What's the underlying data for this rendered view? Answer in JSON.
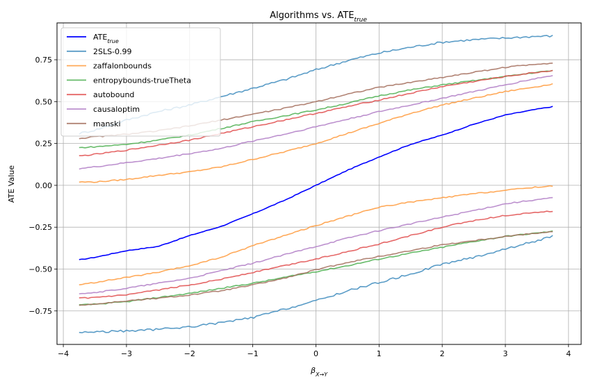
{
  "chart_data": {
    "type": "line",
    "title_main": "Algorithms vs. ATE",
    "title_sub": "true",
    "xlabel_main": "β",
    "xlabel_sub": "X→Y",
    "ylabel": "ATE Value",
    "xlim": [
      -4.1,
      4.2
    ],
    "ylim": [
      -0.95,
      0.97
    ],
    "xticks": [
      -4,
      -3,
      -2,
      -1,
      0,
      1,
      2,
      3,
      4
    ],
    "xtick_labels": [
      "−4",
      "−3",
      "−2",
      "−1",
      "0",
      "1",
      "2",
      "3",
      "4"
    ],
    "yticks": [
      -0.75,
      -0.5,
      -0.25,
      0.0,
      0.25,
      0.5,
      0.75
    ],
    "ytick_labels": [
      "−0.75",
      "−0.50",
      "−0.25",
      "0.00",
      "0.25",
      "0.50",
      "0.75"
    ],
    "grid": true,
    "legend_position": "upper-left",
    "x": [
      -3.75,
      -3.5,
      -3.0,
      -2.5,
      -2.0,
      -1.5,
      -1.0,
      -0.5,
      0.0,
      0.5,
      1.0,
      1.5,
      2.0,
      2.5,
      3.0,
      3.5,
      3.75
    ],
    "series": [
      {
        "name": "ATE",
        "name_sub": "true",
        "color": "#0000ff",
        "upper": [
          -0.445,
          -0.43,
          -0.39,
          -0.365,
          -0.3,
          -0.245,
          -0.17,
          -0.09,
          0.0,
          0.09,
          0.17,
          0.245,
          0.3,
          0.365,
          0.42,
          0.455,
          0.47
        ]
      },
      {
        "name": "2SLS-0.99",
        "color": "#3d8bbd",
        "upper": [
          0.31,
          0.33,
          0.39,
          0.44,
          0.48,
          0.53,
          0.58,
          0.63,
          0.69,
          0.745,
          0.79,
          0.825,
          0.855,
          0.87,
          0.88,
          0.89,
          0.892
        ],
        "lower": [
          -0.878,
          -0.875,
          -0.87,
          -0.86,
          -0.845,
          -0.82,
          -0.79,
          -0.74,
          -0.69,
          -0.63,
          -0.58,
          -0.53,
          -0.47,
          -0.43,
          -0.38,
          -0.33,
          -0.305
        ]
      },
      {
        "name": "zaffalonbounds",
        "color": "#ff9a3c",
        "upper": [
          0.02,
          0.02,
          0.035,
          0.06,
          0.08,
          0.11,
          0.155,
          0.2,
          0.25,
          0.31,
          0.37,
          0.43,
          0.48,
          0.52,
          0.56,
          0.59,
          0.605
        ],
        "lower": [
          -0.595,
          -0.58,
          -0.55,
          -0.52,
          -0.48,
          -0.43,
          -0.36,
          -0.3,
          -0.24,
          -0.185,
          -0.13,
          -0.1,
          -0.075,
          -0.05,
          -0.03,
          -0.01,
          -0.005
        ]
      },
      {
        "name": "entropybounds-trueTheta",
        "color": "#4caf50",
        "upper": [
          0.225,
          0.23,
          0.245,
          0.27,
          0.3,
          0.34,
          0.38,
          0.415,
          0.45,
          0.49,
          0.535,
          0.57,
          0.6,
          0.625,
          0.65,
          0.675,
          0.685
        ],
        "lower": [
          -0.715,
          -0.71,
          -0.695,
          -0.67,
          -0.645,
          -0.615,
          -0.585,
          -0.55,
          -0.515,
          -0.48,
          -0.44,
          -0.405,
          -0.37,
          -0.335,
          -0.305,
          -0.285,
          -0.275
        ]
      },
      {
        "name": "autobound",
        "color": "#e04c4c",
        "upper": [
          0.175,
          0.185,
          0.21,
          0.24,
          0.27,
          0.31,
          0.35,
          0.39,
          0.43,
          0.47,
          0.51,
          0.55,
          0.59,
          0.62,
          0.65,
          0.675,
          0.685
        ],
        "lower": [
          -0.675,
          -0.67,
          -0.655,
          -0.625,
          -0.595,
          -0.56,
          -0.52,
          -0.48,
          -0.44,
          -0.395,
          -0.35,
          -0.3,
          -0.25,
          -0.21,
          -0.18,
          -0.16,
          -0.155
        ]
      },
      {
        "name": "causaloptim",
        "color": "#b07cc6",
        "upper": [
          0.1,
          0.11,
          0.135,
          0.16,
          0.19,
          0.22,
          0.265,
          0.305,
          0.35,
          0.395,
          0.44,
          0.48,
          0.52,
          0.56,
          0.6,
          0.64,
          0.655
        ],
        "lower": [
          -0.645,
          -0.64,
          -0.615,
          -0.585,
          -0.555,
          -0.51,
          -0.465,
          -0.415,
          -0.365,
          -0.315,
          -0.27,
          -0.23,
          -0.19,
          -0.15,
          -0.11,
          -0.085,
          -0.075
        ]
      },
      {
        "name": "manski",
        "color": "#a36d5c",
        "upper": [
          0.28,
          0.29,
          0.305,
          0.325,
          0.355,
          0.39,
          0.425,
          0.46,
          0.5,
          0.545,
          0.585,
          0.615,
          0.645,
          0.675,
          0.705,
          0.725,
          0.73
        ],
        "lower": [
          -0.715,
          -0.71,
          -0.69,
          -0.675,
          -0.655,
          -0.63,
          -0.595,
          -0.555,
          -0.505,
          -0.46,
          -0.425,
          -0.39,
          -0.355,
          -0.33,
          -0.305,
          -0.285,
          -0.275
        ]
      }
    ]
  }
}
